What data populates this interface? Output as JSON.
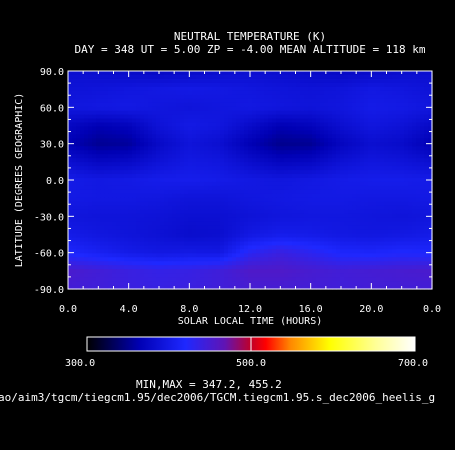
{
  "title": "NEUTRAL TEMPERATURE (K)",
  "subtitle": "DAY = 348   UT =   5.00   ZP =   -4.00   MEAN ALTITUDE = 118 km",
  "minmax_text": "MIN,MAX =        347.2,      455.2",
  "path_text": "ao/aim3/tgcm/tiegcm1.95/dec2006/TGCM.tiegcm1.95.s_dec2006_heelis_g",
  "colors": {
    "background": "#000000",
    "axis": "#ffffff"
  },
  "chart_data": {
    "type": "heatmap",
    "title": "NEUTRAL TEMPERATURE (K)",
    "xlabel": "SOLAR LOCAL TIME (HOURS)",
    "ylabel": "LATITUDE (DEGREES GEOGRAPHIC)",
    "xlim": [
      0.0,
      24.0
    ],
    "ylim": [
      -90.0,
      90.0
    ],
    "xticks": [
      "0.0",
      "4.0",
      "8.0",
      "12.0",
      "16.0",
      "20.0",
      "0.0"
    ],
    "yticks": [
      "90.0",
      "60.0",
      "30.0",
      "0.0",
      "-30.0",
      "-60.0",
      "-90.0"
    ],
    "colorbar": {
      "min": 300.0,
      "max": 700.0,
      "labels": [
        "300.0",
        "500.0",
        "700.0"
      ]
    },
    "data_min": 347.2,
    "data_max": 455.2,
    "grid": false,
    "x": [
      0,
      2,
      4,
      6,
      8,
      10,
      12,
      14,
      16,
      18,
      20,
      22,
      24
    ],
    "y": [
      90,
      75,
      60,
      45,
      30,
      15,
      0,
      -15,
      -30,
      -45,
      -60,
      -75,
      -90
    ],
    "z": [
      [
        385,
        382,
        378,
        375,
        378,
        382,
        385,
        382,
        378,
        375,
        378,
        382,
        385
      ],
      [
        390,
        392,
        395,
        398,
        400,
        398,
        395,
        392,
        390,
        392,
        398,
        395,
        390
      ],
      [
        395,
        398,
        400,
        395,
        392,
        395,
        398,
        395,
        392,
        395,
        402,
        400,
        395
      ],
      [
        375,
        365,
        370,
        390,
        400,
        395,
        380,
        365,
        370,
        385,
        395,
        390,
        378
      ],
      [
        365,
        352,
        355,
        378,
        392,
        385,
        365,
        350,
        352,
        372,
        385,
        380,
        365
      ],
      [
        385,
        375,
        378,
        390,
        398,
        395,
        382,
        372,
        375,
        388,
        395,
        392,
        385
      ],
      [
        402,
        398,
        400,
        404,
        405,
        402,
        398,
        395,
        398,
        402,
        404,
        404,
        402
      ],
      [
        400,
        398,
        398,
        396,
        392,
        392,
        396,
        398,
        400,
        400,
        398,
        398,
        400
      ],
      [
        394,
        392,
        392,
        390,
        386,
        386,
        390,
        394,
        396,
        396,
        394,
        392,
        394
      ],
      [
        402,
        396,
        392,
        388,
        382,
        384,
        398,
        404,
        402,
        398,
        396,
        398,
        402
      ],
      [
        418,
        410,
        402,
        398,
        400,
        398,
        428,
        440,
        430,
        418,
        416,
        420,
        418
      ],
      [
        452,
        446,
        440,
        436,
        438,
        444,
        455,
        455,
        450,
        446,
        448,
        450,
        452
      ],
      [
        446,
        444,
        440,
        438,
        440,
        444,
        448,
        448,
        446,
        444,
        446,
        446,
        446
      ]
    ]
  }
}
